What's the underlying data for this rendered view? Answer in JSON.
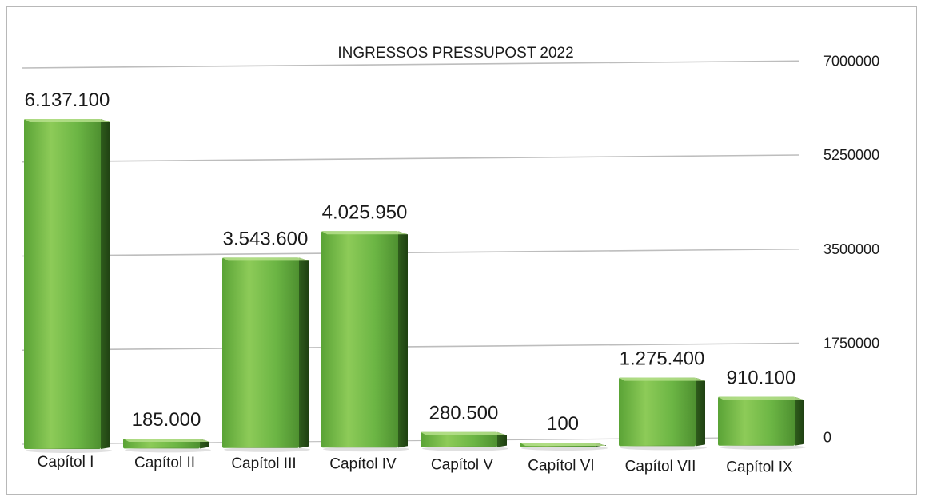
{
  "chart_data": {
    "type": "bar",
    "title": "INGRESSOS PRESSUPOST 2022",
    "xlabel": "",
    "ylabel": "",
    "categories": [
      "Capítol I",
      "Capítol II",
      "Capítol III",
      "Capítol IV",
      "Capítol V",
      "Capítol VI",
      "Capítol VII",
      "Capítol IX"
    ],
    "values": [
      6137100,
      185000,
      3543600,
      4025950,
      280500,
      100,
      1275400,
      910100
    ],
    "data_labels": [
      "6.137.100",
      "185.000",
      "3.543.600",
      "4.025.950",
      "280.500",
      "100",
      "1.275.400",
      "910.100"
    ],
    "yticks": [
      0,
      1750000,
      3500000,
      5250000,
      7000000
    ],
    "ytick_labels": [
      "0",
      "1750000",
      "3500000",
      "5250000",
      "7000000"
    ],
    "ylim": [
      0,
      7000000
    ],
    "grid": true,
    "legend": "none",
    "axis_side": "right",
    "colors": {
      "bar_front": "#6bb544",
      "bar_light": "#9ed36a",
      "bar_side": "#2f5d1c",
      "bar_top": "#b7e08d",
      "grid": "#bdbdbd",
      "text": "#1a1a1a"
    }
  }
}
